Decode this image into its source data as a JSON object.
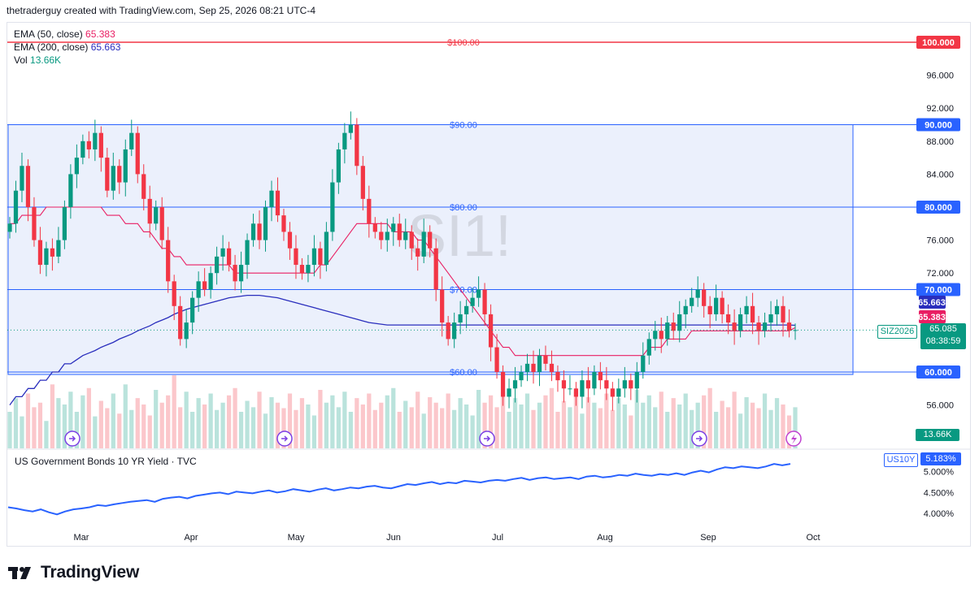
{
  "header": {
    "caption": "thetraderguy created with TradingView.com, Sep 25, 2026 08:21 UTC-4"
  },
  "legend": {
    "ema50_label": "EMA (50, close)",
    "ema50_value": "65.383",
    "ema200_label": "EMA (200, close)",
    "ema200_value": "65.663",
    "vol_label": "Vol",
    "vol_value": "13.66K"
  },
  "watermark": "SI1!",
  "symbol_tag": "SIZ2026",
  "price_tag": {
    "value": "65.085",
    "countdown": "08:38:59"
  },
  "level_labels": [
    "$100.00",
    "$90.00",
    "$80.00",
    "$70.00",
    "$60.00"
  ],
  "volume_tag": "13.66K",
  "sub_chart": {
    "title": "US Government Bonds 10 YR Yield · TVC",
    "symbol": "US10Y",
    "last_value": "5.183%",
    "ticks": [
      "5.000%",
      "4.500%",
      "4.000%"
    ]
  },
  "footer": {
    "brand": "TradingView"
  },
  "colors": {
    "up": "#089981",
    "down": "#f23645",
    "ema50": "#e91e63",
    "ema200": "#2a2ebd",
    "level": "#2962ff",
    "red_level": "#f23645",
    "box_fill": "#e8edfb",
    "yield": "#2962ff"
  },
  "chart_data": {
    "type": "candlestick",
    "y_axis": {
      "ticks": [
        100,
        96,
        92,
        88,
        84,
        80,
        76,
        72,
        68,
        64,
        60,
        56
      ],
      "tick_labels": [
        "100.000",
        "96.000",
        "92.000",
        "88.000",
        "84.000",
        "80.000",
        "76.000",
        "72.000",
        "",
        "",
        "60.000",
        "56.000"
      ],
      "range": [
        52,
        102
      ]
    },
    "x_axis": {
      "labels": [
        "Mar",
        "Apr",
        "May",
        "Jun",
        "Jul",
        "Aug",
        "Sep",
        "Oct"
      ]
    },
    "horizontal_levels": [
      {
        "label": "$100.00",
        "value": 100,
        "axis_tag": "100.000",
        "color": "red"
      },
      {
        "label": "$90.00",
        "value": 90,
        "axis_tag": "90.000",
        "color": "blue"
      },
      {
        "label": "$80.00",
        "value": 80,
        "axis_tag": "80.000",
        "color": "blue"
      },
      {
        "label": "$70.00",
        "value": 70,
        "axis_tag": "70.000",
        "color": "blue"
      },
      {
        "label": "$60.00",
        "value": 60,
        "axis_tag": "60.000",
        "color": "blue"
      }
    ],
    "range_box": {
      "top": 90,
      "bottom": 59.7
    },
    "axis_tags": [
      {
        "value": 65.663,
        "text": "65.663",
        "series": "EMA 200"
      },
      {
        "value": 65.383,
        "text": "65.383",
        "series": "EMA 50"
      },
      {
        "value": 65.085,
        "text": "65.085",
        "series": "Price"
      }
    ],
    "last_close": 65.085,
    "closes": [
      78,
      82,
      85,
      80,
      76,
      73,
      75,
      74,
      76,
      80,
      84,
      86,
      88,
      87,
      89,
      86,
      82,
      85,
      83,
      87,
      89,
      84,
      81,
      78,
      80,
      76,
      71,
      68,
      64,
      66,
      69,
      71,
      70,
      72,
      74,
      75,
      73,
      71,
      73,
      76,
      78,
      76,
      80,
      82,
      79,
      77,
      75,
      73,
      72,
      73,
      75,
      73,
      77,
      83,
      87,
      89,
      90,
      85,
      81,
      78,
      77,
      76,
      77,
      78,
      76,
      77,
      75,
      74,
      77,
      75,
      70,
      66,
      64,
      66,
      67,
      68,
      69,
      70,
      67,
      63,
      60,
      57,
      58,
      59,
      60,
      61,
      60,
      62,
      61,
      60,
      59,
      58,
      58,
      57,
      59,
      58,
      60,
      59,
      58,
      57,
      58,
      59,
      58,
      60,
      62,
      64,
      65,
      64,
      66,
      65,
      67,
      68,
      69,
      70,
      68,
      67,
      69,
      67,
      66,
      65,
      67,
      68,
      66,
      65,
      66,
      67,
      68,
      66,
      65,
      65.085
    ],
    "ema50": [
      78,
      78,
      79,
      79,
      79,
      79,
      80,
      80,
      80,
      80,
      80,
      80,
      80,
      80,
      80,
      80,
      79,
      79,
      79,
      78,
      78,
      78,
      77,
      77,
      76,
      75,
      75,
      74,
      74,
      73,
      73,
      73,
      73,
      73,
      73,
      73,
      73,
      72,
      72,
      72,
      72,
      72,
      72,
      72,
      72,
      72,
      72,
      72,
      72,
      72,
      72,
      73,
      73,
      74,
      75,
      76,
      77,
      78,
      78,
      78,
      78,
      78,
      78,
      77,
      77,
      77,
      77,
      76,
      76,
      75,
      74,
      73,
      72,
      71,
      70,
      69,
      68,
      67,
      66,
      65,
      64,
      63,
      63,
      62,
      62,
      62,
      62,
      62,
      62,
      62,
      62,
      62,
      62,
      62,
      62,
      62,
      62,
      62,
      62,
      62,
      62,
      62,
      62,
      62,
      62,
      63,
      63,
      63,
      64,
      64,
      64,
      64,
      65,
      65,
      65,
      65,
      65,
      65,
      65,
      65,
      65,
      65,
      65,
      65,
      65,
      65,
      65,
      65,
      65,
      65.383
    ],
    "ema200": [
      56,
      57,
      57,
      58,
      58,
      59,
      59,
      60,
      60,
      61,
      61,
      61.5,
      62,
      62.3,
      62.6,
      63,
      63.3,
      63.6,
      64,
      64.3,
      64.6,
      65,
      65.3,
      65.6,
      66,
      66.3,
      66.6,
      67,
      67.3,
      67.6,
      67.8,
      68,
      68.2,
      68.4,
      68.6,
      68.8,
      69,
      69.1,
      69.2,
      69.3,
      69.3,
      69.3,
      69.2,
      69.1,
      69,
      68.8,
      68.6,
      68.4,
      68.2,
      68,
      67.8,
      67.6,
      67.4,
      67.2,
      67,
      66.8,
      66.6,
      66.4,
      66.2,
      66,
      65.9,
      65.8,
      65.7,
      65.7,
      65.7,
      65.7,
      65.7,
      65.7,
      65.7,
      65.7,
      65.7,
      65.7,
      65.7,
      65.7,
      65.7,
      65.7,
      65.7,
      65.7,
      65.7,
      65.7,
      65.7,
      65.7,
      65.7,
      65.7,
      65.7,
      65.7,
      65.7,
      65.7,
      65.7,
      65.7,
      65.7,
      65.7,
      65.7,
      65.7,
      65.7,
      65.7,
      65.7,
      65.7,
      65.7,
      65.7,
      65.7,
      65.7,
      65.7,
      65.7,
      65.7,
      65.7,
      65.7,
      65.7,
      65.7,
      65.7,
      65.7,
      65.7,
      65.7,
      65.7,
      65.7,
      65.7,
      65.7,
      65.7,
      65.7,
      65.7,
      65.7,
      65.7,
      65.7,
      65.7,
      65.7,
      65.7,
      65.7,
      65.7,
      65.7,
      65.663
    ],
    "volume": [
      40,
      55,
      35,
      60,
      45,
      50,
      30,
      70,
      55,
      48,
      62,
      40,
      58,
      66,
      35,
      52,
      44,
      60,
      38,
      70,
      42,
      55,
      48,
      36,
      64,
      50,
      58,
      80,
      45,
      62,
      40,
      55,
      48,
      60,
      42,
      50,
      58,
      66,
      40,
      52,
      45,
      62,
      38,
      56,
      50,
      44,
      60,
      42,
      55,
      48,
      36,
      64,
      50,
      58,
      45,
      62,
      40,
      55,
      48,
      60,
      42,
      50,
      58,
      66,
      40,
      52,
      45,
      62,
      38,
      56,
      50,
      44,
      60,
      42,
      55,
      48,
      36,
      64,
      50,
      58,
      45,
      62,
      40,
      55,
      48,
      60,
      42,
      50,
      58,
      66,
      40,
      52,
      45,
      62,
      38,
      56,
      50,
      44,
      60,
      42,
      55,
      48,
      36,
      64,
      50,
      58,
      45,
      62,
      40,
      55,
      48,
      60,
      42,
      50,
      58,
      66,
      40,
      52,
      45,
      62,
      38,
      56,
      50,
      44,
      60,
      42,
      55,
      48,
      36,
      45
    ],
    "yield": {
      "ticks": [
        5.0,
        4.5,
        4.0
      ],
      "range": [
        3.85,
        5.3
      ],
      "values": [
        4.15,
        4.12,
        4.08,
        4.05,
        4.1,
        4.03,
        3.98,
        4.05,
        4.1,
        4.12,
        4.15,
        4.2,
        4.18,
        4.22,
        4.25,
        4.28,
        4.3,
        4.32,
        4.28,
        4.35,
        4.38,
        4.4,
        4.36,
        4.42,
        4.45,
        4.48,
        4.5,
        4.46,
        4.52,
        4.5,
        4.48,
        4.52,
        4.55,
        4.5,
        4.53,
        4.58,
        4.55,
        4.52,
        4.57,
        4.6,
        4.55,
        4.58,
        4.62,
        4.6,
        4.64,
        4.66,
        4.62,
        4.6,
        4.65,
        4.7,
        4.68,
        4.72,
        4.75,
        4.7,
        4.74,
        4.72,
        4.78,
        4.76,
        4.74,
        4.78,
        4.8,
        4.78,
        4.82,
        4.85,
        4.8,
        4.84,
        4.86,
        4.82,
        4.84,
        4.86,
        4.82,
        4.88,
        4.9,
        4.86,
        4.88,
        4.92,
        4.9,
        4.95,
        4.92,
        4.9,
        4.94,
        4.92,
        4.96,
        4.92,
        4.98,
        5.02,
        4.98,
        5.05,
        5.1,
        5.08,
        5.12,
        5.1,
        5.08,
        5.12,
        5.18,
        5.15,
        5.183
      ]
    }
  }
}
